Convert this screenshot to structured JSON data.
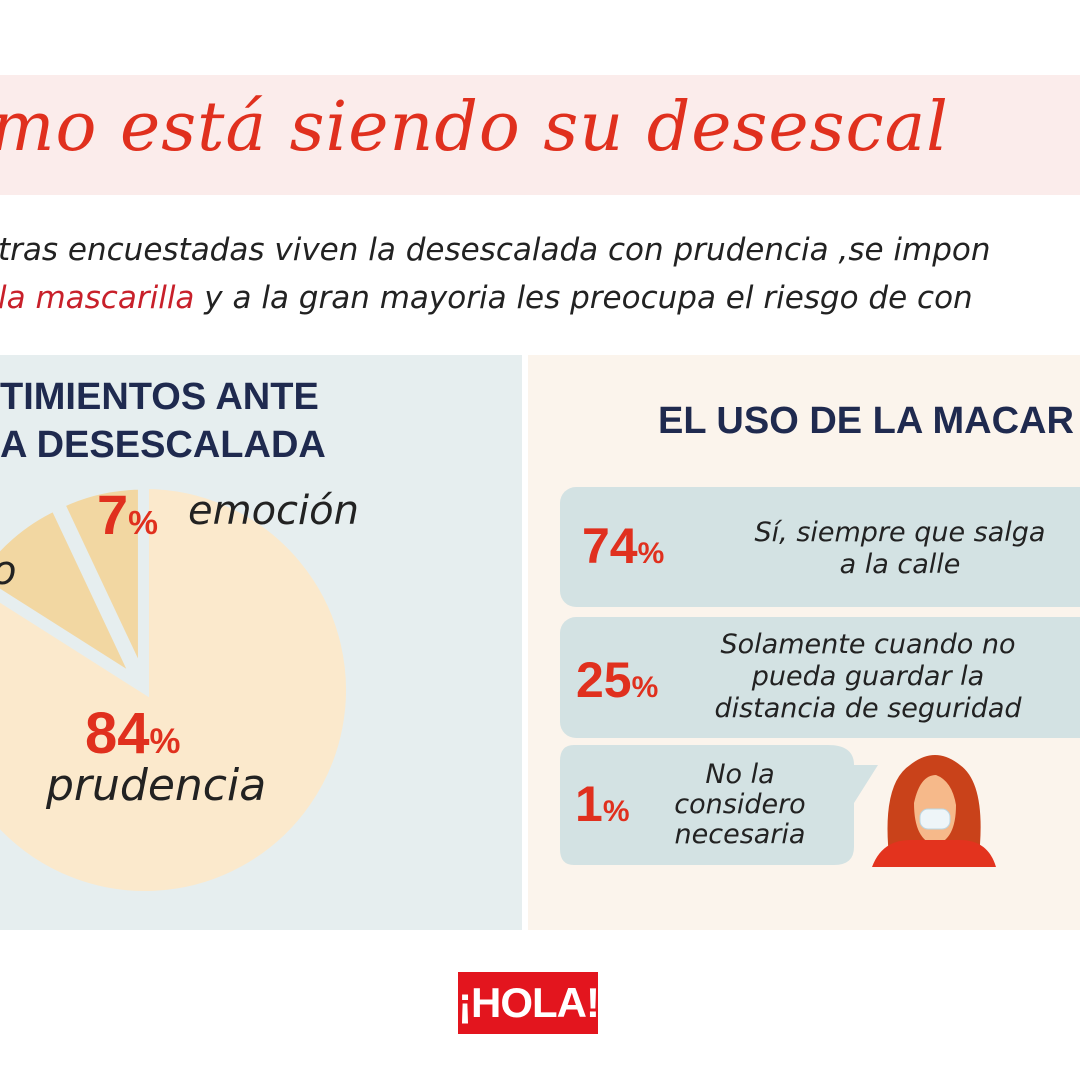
{
  "header": {
    "title": "mo está siendo su desescal",
    "subtitle_line1": "tras encuestadas viven la desescalada con prudencia ,se impon",
    "subtitle_line2_highlight": "la mascarilla",
    "subtitle_line2_rest": " y a la gran mayoria les preocupa el riesgo de con"
  },
  "left_section": {
    "heading_line1": "TIMIENTOS ANTE",
    "heading_line2": "A DESESCALADA"
  },
  "chart_data": {
    "type": "pie",
    "slices": [
      {
        "label": "prudencia",
        "value": 84,
        "value_label": "84",
        "color": "#fbe9cc"
      },
      {
        "label": "o",
        "value": 9,
        "value_label": "",
        "color": "#f2d7a2"
      },
      {
        "label": "emoción",
        "value": 7,
        "value_label": "7",
        "color": "#f2d7a2"
      }
    ],
    "unit": "%"
  },
  "right_section": {
    "heading": "EL USO DE LA MACAR",
    "items": [
      {
        "value": "74",
        "unit": "%",
        "text_lines": [
          "Sí, siempre que salga",
          "a la calle"
        ]
      },
      {
        "value": "25",
        "unit": "%",
        "text_lines": [
          "Solamente cuando no",
          "pueda guardar la",
          "distancia de seguridad"
        ]
      },
      {
        "value": "1",
        "unit": "%",
        "text_lines": [
          "No la",
          "considero",
          "necesaria"
        ]
      }
    ]
  },
  "footer": {
    "logo": "¡HOLA!"
  },
  "colors": {
    "accent_red": "#e0301e",
    "navy": "#1f2a4f",
    "box": "#d3e2e3"
  }
}
